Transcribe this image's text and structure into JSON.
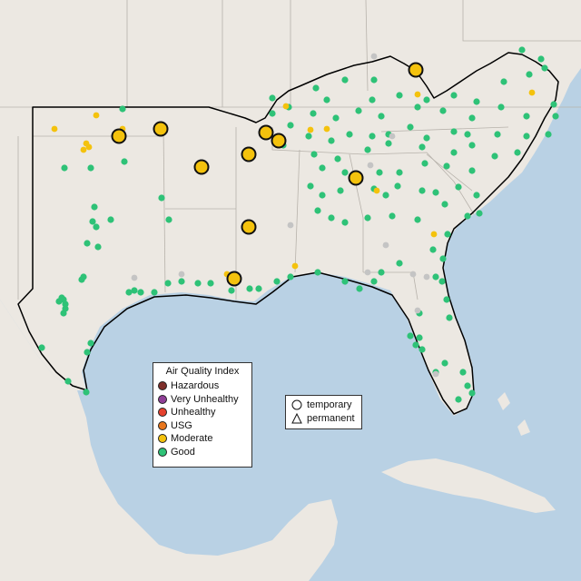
{
  "colors": {
    "water": "#b9d1e4",
    "land": "#ece8e2",
    "boundary": "#000000",
    "aqi": {
      "Hazardous": "#7e2f2a",
      "Very Unhealthy": "#8f3f97",
      "Unhealthy": "#e5412e",
      "USG": "#e8761c",
      "Moderate": "#f4c20d",
      "Good": "#2ec277",
      "None": "#c4c4c4"
    }
  },
  "legend": {
    "title": "Air Quality Index",
    "categories": [
      {
        "label": "Hazardous",
        "key": "Hazardous"
      },
      {
        "label": "Very Unhealthy",
        "key": "Very Unhealthy"
      },
      {
        "label": "Unhealthy",
        "key": "Unhealthy"
      },
      {
        "label": "USG",
        "key": "USG"
      },
      {
        "label": "Moderate",
        "key": "Moderate"
      },
      {
        "label": "Good",
        "key": "Good"
      }
    ]
  },
  "monitor_type_legend": {
    "items": [
      {
        "label": "temporary",
        "shape": "circle-icon"
      },
      {
        "label": "permanent",
        "shape": "triangle-icon"
      }
    ]
  },
  "temporary_monitors_aqi": "Moderate",
  "permanent_monitor_categories_shown": [
    "Good",
    "Moderate",
    "None"
  ]
}
